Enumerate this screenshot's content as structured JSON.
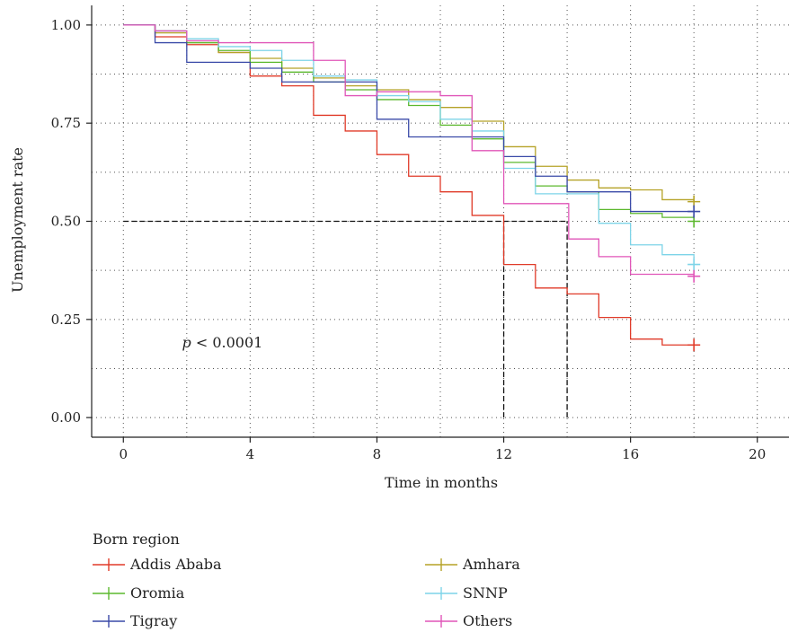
{
  "chart_data": {
    "type": "line",
    "step": true,
    "xlabel": "Time in months",
    "ylabel": "Unemployment rate",
    "xlim": [
      -1,
      21
    ],
    "ylim": [
      -0.05,
      1.05
    ],
    "xticks": [
      0,
      4,
      8,
      12,
      16,
      20
    ],
    "yticks": [
      0.0,
      0.25,
      0.5,
      0.75,
      1.0
    ],
    "xtick_labels": [
      "0",
      "4",
      "8",
      "12",
      "16",
      "20"
    ],
    "ytick_labels": [
      "0.00",
      "0.25",
      "0.50",
      "0.75",
      "1.00"
    ],
    "grid": "dotted",
    "legend": {
      "title": "Born region",
      "placement": "bottom"
    },
    "annotation": {
      "p_symbol": "p",
      "text": " < 0.0001",
      "x": 1,
      "y": 0.19
    },
    "median_lines": [
      {
        "y": 0.5,
        "x": [
          0,
          14
        ]
      },
      {
        "x": 12,
        "y": [
          0,
          0.5
        ]
      },
      {
        "x": 14,
        "y": [
          0,
          0.5
        ]
      }
    ],
    "series": [
      {
        "name": "Addis Ababa",
        "color": "#e03a28",
        "points": [
          [
            0,
            1.0
          ],
          [
            1,
            0.97
          ],
          [
            2,
            0.95
          ],
          [
            3,
            0.93
          ],
          [
            4,
            0.87
          ],
          [
            5,
            0.845
          ],
          [
            6,
            0.77
          ],
          [
            7,
            0.73
          ],
          [
            8,
            0.67
          ],
          [
            9,
            0.615
          ],
          [
            10,
            0.575
          ],
          [
            11,
            0.515
          ],
          [
            12,
            0.39
          ],
          [
            13,
            0.33
          ],
          [
            14,
            0.315
          ],
          [
            15,
            0.255
          ],
          [
            16,
            0.2
          ],
          [
            17,
            0.185
          ],
          [
            18,
            0.185
          ]
        ],
        "censor": [
          18,
          0.185
        ]
      },
      {
        "name": "Amhara",
        "color": "#b5a227",
        "points": [
          [
            0,
            1.0
          ],
          [
            1,
            0.98
          ],
          [
            2,
            0.955
          ],
          [
            3,
            0.93
          ],
          [
            4,
            0.915
          ],
          [
            5,
            0.89
          ],
          [
            6,
            0.865
          ],
          [
            7,
            0.845
          ],
          [
            8,
            0.835
          ],
          [
            9,
            0.81
          ],
          [
            10,
            0.79
          ],
          [
            11,
            0.755
          ],
          [
            12,
            0.69
          ],
          [
            13,
            0.64
          ],
          [
            14,
            0.605
          ],
          [
            15,
            0.585
          ],
          [
            16,
            0.58
          ],
          [
            17,
            0.555
          ],
          [
            18,
            0.55
          ]
        ],
        "censor": [
          18,
          0.55
        ]
      },
      {
        "name": "Oromia",
        "color": "#5cb82e",
        "points": [
          [
            0,
            1.0
          ],
          [
            1,
            0.985
          ],
          [
            2,
            0.955
          ],
          [
            3,
            0.935
          ],
          [
            4,
            0.905
          ],
          [
            5,
            0.88
          ],
          [
            6,
            0.855
          ],
          [
            7,
            0.835
          ],
          [
            8,
            0.81
          ],
          [
            9,
            0.795
          ],
          [
            10,
            0.745
          ],
          [
            11,
            0.71
          ],
          [
            12,
            0.65
          ],
          [
            13,
            0.59
          ],
          [
            14,
            0.575
          ],
          [
            15,
            0.53
          ],
          [
            16,
            0.52
          ],
          [
            17,
            0.51
          ],
          [
            18,
            0.5
          ]
        ],
        "censor": [
          18,
          0.5
        ]
      },
      {
        "name": "SNNP",
        "color": "#7dd4e8",
        "points": [
          [
            0,
            1.0
          ],
          [
            1,
            0.985
          ],
          [
            2,
            0.965
          ],
          [
            3,
            0.945
          ],
          [
            4,
            0.935
          ],
          [
            5,
            0.91
          ],
          [
            6,
            0.87
          ],
          [
            7,
            0.86
          ],
          [
            8,
            0.82
          ],
          [
            9,
            0.805
          ],
          [
            10,
            0.76
          ],
          [
            11,
            0.73
          ],
          [
            12,
            0.635
          ],
          [
            13,
            0.57
          ],
          [
            14,
            0.57
          ],
          [
            15,
            0.495
          ],
          [
            16,
            0.44
          ],
          [
            17,
            0.415
          ],
          [
            18,
            0.39
          ]
        ],
        "censor": [
          18,
          0.39
        ]
      },
      {
        "name": "Tigray",
        "color": "#3a4aa8",
        "points": [
          [
            0,
            1.0
          ],
          [
            1,
            0.955
          ],
          [
            2,
            0.905
          ],
          [
            4,
            0.89
          ],
          [
            5,
            0.855
          ],
          [
            7,
            0.855
          ],
          [
            8,
            0.76
          ],
          [
            9,
            0.715
          ],
          [
            11,
            0.715
          ],
          [
            12,
            0.665
          ],
          [
            13,
            0.615
          ],
          [
            14,
            0.575
          ],
          [
            16,
            0.525
          ],
          [
            18,
            0.525
          ]
        ],
        "censor": [
          18,
          0.525
        ]
      },
      {
        "name": "Others",
        "color": "#e055b8",
        "points": [
          [
            0,
            1.0
          ],
          [
            1,
            0.985
          ],
          [
            2,
            0.96
          ],
          [
            3,
            0.955
          ],
          [
            6,
            0.91
          ],
          [
            7,
            0.82
          ],
          [
            8,
            0.83
          ],
          [
            10,
            0.82
          ],
          [
            11,
            0.68
          ],
          [
            12,
            0.545
          ],
          [
            14,
            0.545
          ],
          [
            14.05,
            0.455
          ],
          [
            15,
            0.41
          ],
          [
            16,
            0.365
          ],
          [
            18,
            0.36
          ]
        ],
        "censor": [
          18,
          0.36
        ]
      }
    ]
  }
}
